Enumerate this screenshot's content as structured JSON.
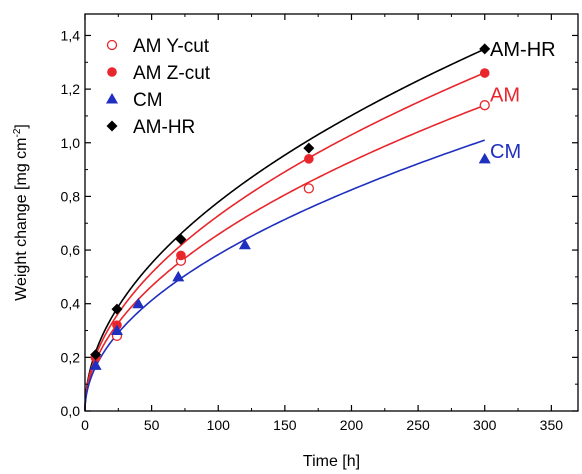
{
  "chart_data": {
    "type": "scatter",
    "title": "",
    "xlabel": "Time [h]",
    "ylabel_main": "Weight change [mg cm",
    "ylabel_sup": "-2",
    "ylabel_end": "]",
    "xlim": [
      0,
      370
    ],
    "ylim": [
      0,
      1.48
    ],
    "xticks": [
      0,
      50,
      100,
      150,
      200,
      250,
      300,
      350
    ],
    "xtick_labels": [
      "0",
      "50",
      "100",
      "150",
      "200",
      "250",
      "300",
      "350"
    ],
    "yticks": [
      0,
      0.2,
      0.4,
      0.6,
      0.8,
      1.0,
      1.2,
      1.4
    ],
    "ytick_labels": [
      "0,0",
      "0,2",
      "0,4",
      "0,6",
      "0,8",
      "1,0",
      "1,2",
      "1,4"
    ],
    "grid": false,
    "legend_position": "top-left",
    "series": [
      {
        "name": "AM Y-cut",
        "marker": "open-circle",
        "color": "#e8262c",
        "x": [
          8,
          24,
          72,
          168,
          300
        ],
        "y": [
          0.2,
          0.28,
          0.56,
          0.83,
          1.14
        ]
      },
      {
        "name": "AM Z-cut",
        "marker": "filled-circle",
        "color": "#e8262c",
        "x": [
          8,
          24,
          72,
          168,
          300
        ],
        "y": [
          0.2,
          0.32,
          0.58,
          0.94,
          1.26
        ]
      },
      {
        "name": "CM",
        "marker": "triangle",
        "color": "#1f2fbf",
        "x": [
          8,
          24,
          40,
          70,
          120,
          300
        ],
        "y": [
          0.17,
          0.3,
          0.4,
          0.5,
          0.62,
          0.94
        ]
      },
      {
        "name": "AM-HR",
        "marker": "diamond",
        "color": "#000000",
        "x": [
          8,
          24,
          72,
          168,
          300
        ],
        "y": [
          0.21,
          0.38,
          0.64,
          0.98,
          1.35
        ]
      }
    ],
    "fits": [
      {
        "label": "AM-HR",
        "color": "#000000",
        "k": 0.0779,
        "x_end": 300
      },
      {
        "label": "AM",
        "color": "#e8262c",
        "k": 0.0728,
        "x_end": 300
      },
      {
        "label": "AM",
        "color": "#e8262c",
        "k": 0.0658,
        "x_end": 300
      },
      {
        "label": "CM",
        "color": "#1f2fbf",
        "k": 0.0583,
        "x_end": 300
      }
    ],
    "annotations": [
      {
        "text": "AM-HR",
        "color": "#000000",
        "x": 304,
        "y": 1.35
      },
      {
        "text": "AM",
        "color": "#e8262c",
        "x": 304,
        "y": 1.18
      },
      {
        "text": "CM",
        "color": "#1f2fbf",
        "x": 304,
        "y": 0.97
      }
    ]
  }
}
